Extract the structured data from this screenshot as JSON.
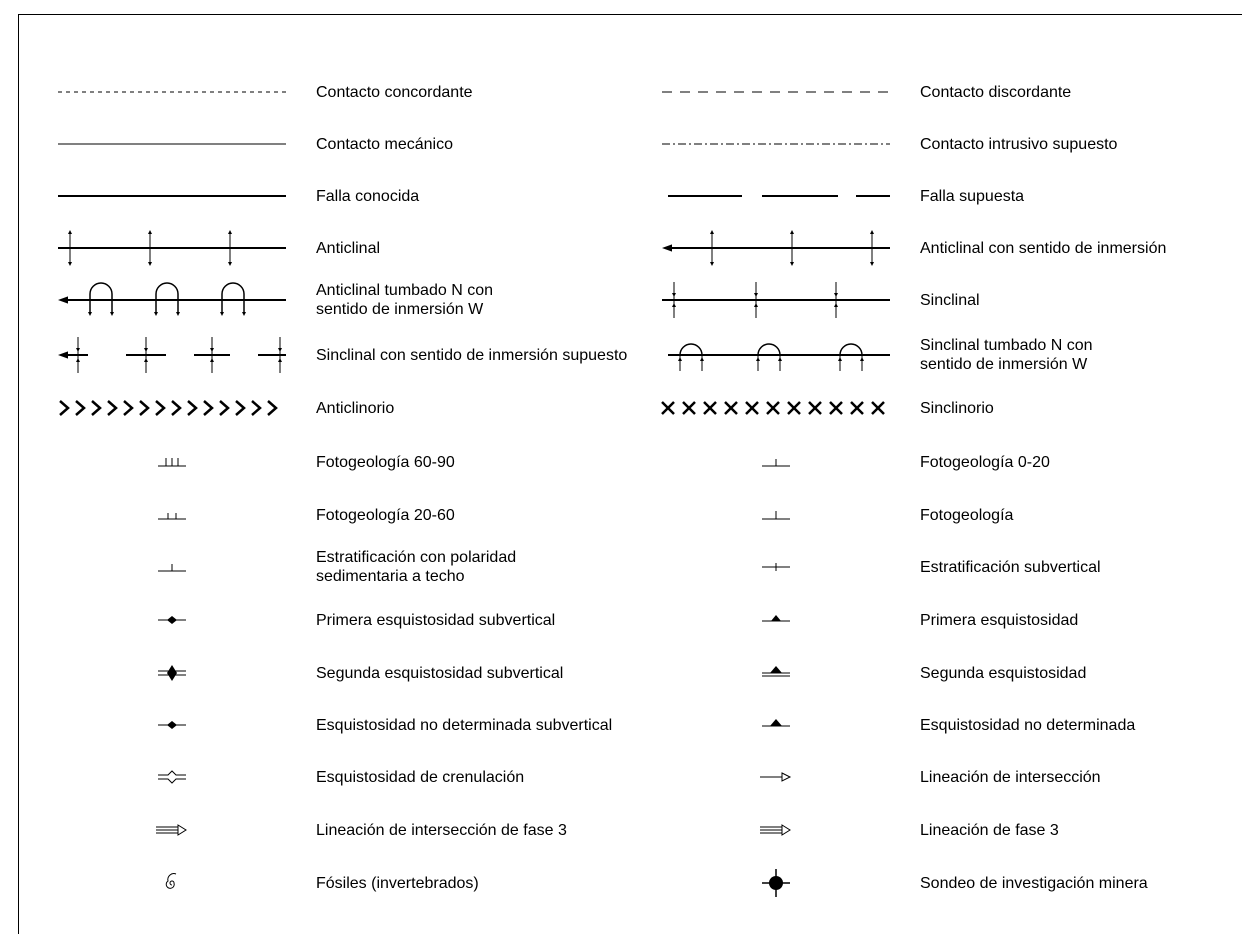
{
  "legend": {
    "left": [
      {
        "label": "Contacto concordante",
        "symbol": "dotted-line"
      },
      {
        "label": "Contacto mecánico",
        "symbol": "thin-line"
      },
      {
        "label": "Falla conocida",
        "symbol": "thick-line"
      },
      {
        "label": "Anticlinal",
        "symbol": "anticline"
      },
      {
        "label": "Anticlinal tumbado N con\nsentido de inmersión W",
        "symbol": "overturned-anticline-plunge"
      },
      {
        "label": "Sinclinal con sentido de inmersión supuesto",
        "symbol": "syncline-plunge-inferred"
      },
      {
        "label": "Anticlinorio",
        "symbol": "anticlinorium-chevrons"
      },
      {
        "label": "Fotogeología 60-90",
        "symbol": "photogeology-60-90"
      },
      {
        "label": "Fotogeología 20-60",
        "symbol": "photogeology-20-60"
      },
      {
        "label": "Estratificación con polaridad\nsedimentaria a techo",
        "symbol": "bedding-polarity"
      },
      {
        "label": "Primera esquistosidad subvertical",
        "symbol": "first-schistosity-subvertical"
      },
      {
        "label": "Segunda esquistosidad subvertical",
        "symbol": "second-schistosity-subvertical"
      },
      {
        "label": "Esquistosidad no determinada subvertical",
        "symbol": "undetermined-schistosity-subvertical"
      },
      {
        "label": "Esquistosidad de crenulación",
        "symbol": "crenulation-schistosity"
      },
      {
        "label": "Lineación de intersección de fase 3",
        "symbol": "intersection-lineation-phase3"
      },
      {
        "label": "Fósiles (invertebrados)",
        "symbol": "fossil-spiral"
      }
    ],
    "right": [
      {
        "label": "Contacto discordante",
        "symbol": "dashed-line"
      },
      {
        "label": "Contacto intrusivo supuesto",
        "symbol": "dash-dot-line"
      },
      {
        "label": "Falla supuesta",
        "symbol": "long-dash-line"
      },
      {
        "label": "Anticlinal con sentido de inmersión",
        "symbol": "anticline-plunge"
      },
      {
        "label": "Sinclinal",
        "symbol": "syncline"
      },
      {
        "label": "Sinclinal tumbado N con\nsentido de inmersión W",
        "symbol": "overturned-syncline"
      },
      {
        "label": "Sinclinorio",
        "symbol": "synclinorium-crosses"
      },
      {
        "label": "Fotogeología 0-20",
        "symbol": "photogeology-0-20"
      },
      {
        "label": "Fotogeología",
        "symbol": "photogeology"
      },
      {
        "label": "Estratificación subvertical",
        "symbol": "bedding-subvertical"
      },
      {
        "label": "Primera esquistosidad",
        "symbol": "first-schistosity"
      },
      {
        "label": "Segunda esquistosidad",
        "symbol": "second-schistosity"
      },
      {
        "label": "Esquistosidad no determinada",
        "symbol": "undetermined-schistosity"
      },
      {
        "label": "Lineación de intersección",
        "symbol": "intersection-lineation"
      },
      {
        "label": "Lineación de fase 3",
        "symbol": "lineation-phase3"
      },
      {
        "label": "Sondeo de investigación minera",
        "symbol": "mining-drillhole"
      }
    ]
  }
}
